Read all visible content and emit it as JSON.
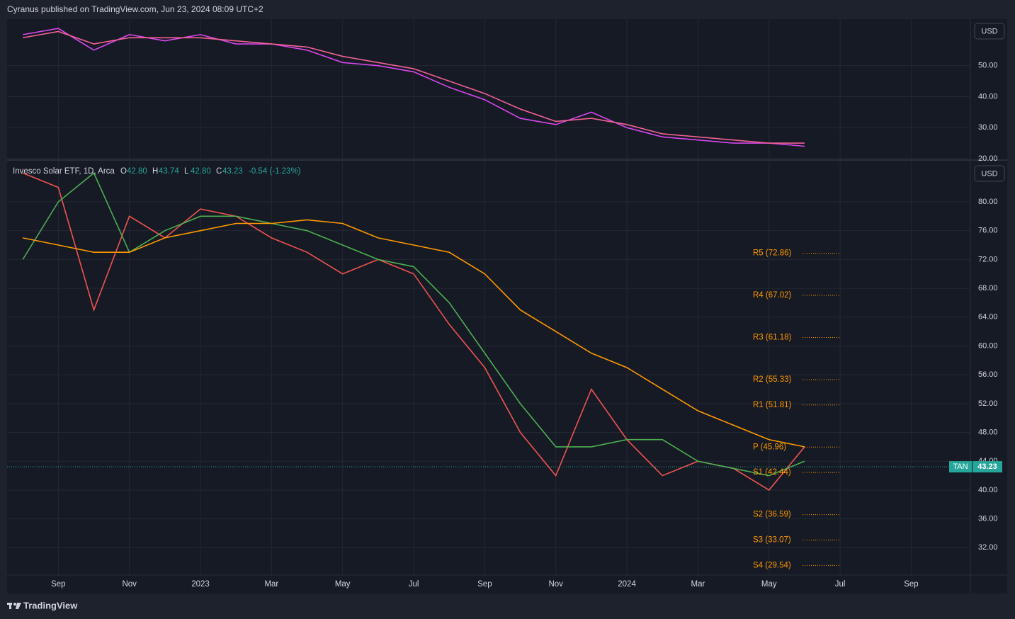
{
  "header": {
    "published": "Cyranus published on TradingView.com, Jun 23, 2024 08:09 UTC+2"
  },
  "footer": {
    "brand": "TradingView"
  },
  "chart_data": [
    {
      "type": "line",
      "currency": "USD",
      "x": [
        "2022-08",
        "2022-09",
        "2022-10",
        "2022-11",
        "2022-12",
        "2023-01",
        "2023-02",
        "2023-03",
        "2023-04",
        "2023-05",
        "2023-06",
        "2023-07",
        "2023-08",
        "2023-09",
        "2023-10",
        "2023-11",
        "2023-12",
        "2024-01",
        "2024-02",
        "2024-03",
        "2024-04",
        "2024-05",
        "2024-06"
      ],
      "series": [
        {
          "color": "#d946ef",
          "values": [
            60,
            62,
            55,
            60,
            58,
            60,
            57,
            57,
            55,
            51,
            50,
            48,
            43,
            39,
            33,
            31,
            35,
            30,
            27,
            26,
            25,
            25,
            24
          ]
        },
        {
          "color": "#f06292",
          "values": [
            59,
            61,
            57,
            59,
            59,
            59,
            58,
            57,
            56,
            53,
            51,
            49,
            45,
            41,
            36,
            32,
            33,
            31,
            28,
            27,
            26,
            25,
            25
          ]
        }
      ],
      "xlim": [
        "2022-07",
        "2024-10"
      ],
      "ylim": [
        20,
        65
      ],
      "yticks": [
        {
          "value": 20,
          "label": "20.00"
        },
        {
          "value": 30,
          "label": "30.00"
        },
        {
          "value": 40,
          "label": "40.00"
        },
        {
          "value": 50,
          "label": "50.00"
        }
      ],
      "grid": true
    },
    {
      "type": "line",
      "currency": "USD",
      "title": "Invesco Solar ETF, 1D, Arca",
      "ohlc": [
        {
          "key": "O",
          "value": 42.8,
          "label": "42.80"
        },
        {
          "key": "H",
          "value": 43.74,
          "label": "43.74"
        },
        {
          "key": "L",
          "value": 42.8,
          "label": "42.80"
        },
        {
          "key": "C",
          "value": 43.23,
          "label": "43.23"
        }
      ],
      "change": {
        "value": -0.54,
        "label": "-0.54 (-1.23%)"
      },
      "last": {
        "symbol": "TAN",
        "price": 43.23
      },
      "x": [
        "2022-08",
        "2022-09",
        "2022-10",
        "2022-11",
        "2022-12",
        "2023-01",
        "2023-02",
        "2023-03",
        "2023-04",
        "2023-05",
        "2023-06",
        "2023-07",
        "2023-08",
        "2023-09",
        "2023-10",
        "2023-11",
        "2023-12",
        "2024-01",
        "2024-02",
        "2024-03",
        "2024-04",
        "2024-05",
        "2024-06"
      ],
      "series": [
        {
          "color": "#ef5350",
          "values": [
            84,
            82,
            65,
            78,
            75,
            79,
            78,
            75,
            73,
            70,
            72,
            70,
            63,
            57,
            48,
            42,
            54,
            47,
            42,
            44,
            43,
            40,
            46
          ]
        },
        {
          "color": "#4caf50",
          "values": [
            72,
            80,
            84,
            73,
            76,
            78,
            78,
            77,
            76,
            74,
            72,
            71,
            66,
            59,
            52,
            46,
            46,
            47,
            47,
            44,
            43,
            42,
            44
          ]
        },
        {
          "color": "#ff9800",
          "values": [
            75,
            74,
            73,
            73,
            75,
            76,
            77,
            77,
            77.5,
            77,
            75,
            74,
            73,
            70,
            65,
            62,
            59,
            57,
            54,
            51,
            49,
            47,
            46
          ]
        }
      ],
      "levels": [
        {
          "label": "R5 (72.86)",
          "value": 72.86
        },
        {
          "label": "R4 (67.02)",
          "value": 67.02
        },
        {
          "label": "R3 (61.18)",
          "value": 61.18
        },
        {
          "label": "R2 (55.33)",
          "value": 55.33
        },
        {
          "label": "R1 (51.81)",
          "value": 51.81
        },
        {
          "label": "P (45.96)",
          "value": 45.96
        },
        {
          "label": "S1 (42.44)",
          "value": 42.44
        },
        {
          "label": "S2 (36.59)",
          "value": 36.59
        },
        {
          "label": "S3 (33.07)",
          "value": 33.07
        },
        {
          "label": "S4 (29.54)",
          "value": 29.54
        }
      ],
      "level_color": "#ff9800",
      "xlim": [
        "2022-07",
        "2024-10"
      ],
      "ylim": [
        28.2,
        85.6
      ],
      "yticks": [
        {
          "value": 32,
          "label": "32.00"
        },
        {
          "value": 36,
          "label": "36.00"
        },
        {
          "value": 40,
          "label": "40.00"
        },
        {
          "value": 44,
          "label": "44.00"
        },
        {
          "value": 48,
          "label": "48.00"
        },
        {
          "value": 52,
          "label": "52.00"
        },
        {
          "value": 56,
          "label": "56.00"
        },
        {
          "value": 60,
          "label": "60.00"
        },
        {
          "value": 64,
          "label": "64.00"
        },
        {
          "value": 68,
          "label": "68.00"
        },
        {
          "value": 72,
          "label": "72.00"
        },
        {
          "value": 76,
          "label": "76.00"
        },
        {
          "value": 80,
          "label": "80.00"
        }
      ],
      "xticks": [
        {
          "value": "2022-09",
          "label": "Sep"
        },
        {
          "value": "2022-11",
          "label": "Nov"
        },
        {
          "value": "2023-01",
          "label": "2023"
        },
        {
          "value": "2023-03",
          "label": "Mar"
        },
        {
          "value": "2023-05",
          "label": "May"
        },
        {
          "value": "2023-07",
          "label": "Jul"
        },
        {
          "value": "2023-09",
          "label": "Sep"
        },
        {
          "value": "2023-11",
          "label": "Nov"
        },
        {
          "value": "2024-01",
          "label": "2024"
        },
        {
          "value": "2024-03",
          "label": "Mar"
        },
        {
          "value": "2024-05",
          "label": "May"
        },
        {
          "value": "2024-07",
          "label": "Jul"
        },
        {
          "value": "2024-09",
          "label": "Sep"
        }
      ],
      "grid": true
    }
  ]
}
